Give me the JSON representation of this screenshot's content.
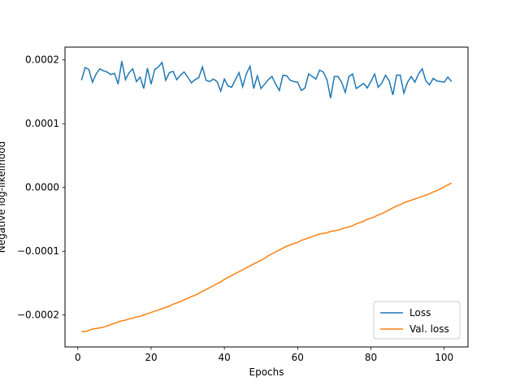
{
  "chart_data": {
    "type": "line",
    "title": "",
    "xlabel": "Epochs",
    "ylabel": "Negative log-likelihood",
    "xlim": [
      -3.5,
      106.5
    ],
    "ylim": [
      -0.00025,
      0.00022
    ],
    "xticks": [
      0,
      20,
      40,
      60,
      80,
      100
    ],
    "xtick_labels": [
      "0",
      "20",
      "40",
      "60",
      "80",
      "100"
    ],
    "yticks": [
      -0.0002,
      -0.0001,
      0.0,
      0.0001,
      0.0002
    ],
    "ytick_labels": [
      "−0.0002",
      "−0.0001",
      "0.0000",
      "0.0001",
      "0.0002"
    ],
    "grid": false,
    "legend_position": "lower-right",
    "x": [
      1,
      2,
      3,
      4,
      5,
      6,
      7,
      8,
      9,
      10,
      11,
      12,
      13,
      14,
      15,
      16,
      17,
      18,
      19,
      20,
      21,
      22,
      23,
      24,
      25,
      26,
      27,
      28,
      29,
      30,
      31,
      32,
      33,
      34,
      35,
      36,
      37,
      38,
      39,
      40,
      41,
      42,
      43,
      44,
      45,
      46,
      47,
      48,
      49,
      50,
      51,
      52,
      53,
      54,
      55,
      56,
      57,
      58,
      59,
      60,
      61,
      62,
      63,
      64,
      65,
      66,
      67,
      68,
      69,
      70,
      71,
      72,
      73,
      74,
      75,
      76,
      77,
      78,
      79,
      80,
      81,
      82,
      83,
      84,
      85,
      86,
      87,
      88,
      89,
      90,
      91,
      92,
      93,
      94,
      95,
      96,
      97,
      98,
      99,
      100,
      101,
      102
    ],
    "series": [
      {
        "name": "Loss",
        "color": "#1f77b4",
        "values": [
          0.000168,
          0.000188,
          0.000185,
          0.000165,
          0.000178,
          0.000186,
          0.000183,
          0.000181,
          0.000177,
          0.000179,
          0.000162,
          0.000198,
          0.000169,
          0.00018,
          0.000186,
          0.000166,
          0.000173,
          0.000155,
          0.000187,
          0.000162,
          0.000185,
          0.000189,
          0.000196,
          0.000168,
          0.00018,
          0.000182,
          0.000169,
          0.000176,
          0.000181,
          0.000173,
          0.000164,
          0.000169,
          0.000172,
          0.000189,
          0.000168,
          0.000166,
          0.00017,
          0.000166,
          0.000151,
          0.00017,
          0.000159,
          0.000157,
          0.000169,
          0.00018,
          0.000158,
          0.000178,
          0.00019,
          0.000155,
          0.000175,
          0.000155,
          0.000162,
          0.000169,
          0.000174,
          0.000162,
          0.000152,
          0.000176,
          0.000175,
          0.000168,
          0.000166,
          0.000165,
          0.000152,
          0.000156,
          0.000178,
          0.000174,
          0.00017,
          0.000184,
          0.000181,
          0.000169,
          0.00014,
          0.000174,
          0.000174,
          0.000165,
          0.000149,
          0.000174,
          0.000178,
          0.000155,
          0.000159,
          0.000163,
          0.000156,
          0.000166,
          0.000178,
          0.000157,
          0.000164,
          0.000176,
          0.000167,
          0.000145,
          0.000176,
          0.000176,
          0.000148,
          0.000165,
          0.000174,
          0.000165,
          0.000178,
          0.000186,
          0.000167,
          0.000161,
          0.000171,
          0.000167,
          0.000166,
          0.000165,
          0.000173,
          0.000166
        ]
      },
      {
        "name": "Val. loss",
        "color": "#ff7f0e",
        "values": [
          -0.000226,
          -0.000226,
          -0.000224,
          -0.000222,
          -0.000221,
          -0.00022,
          -0.000219,
          -0.000217,
          -0.000215,
          -0.000213,
          -0.000211,
          -0.000209,
          -0.000208,
          -0.000206,
          -0.000205,
          -0.000203,
          -0.000202,
          -0.0002,
          -0.000198,
          -0.000196,
          -0.000194,
          -0.000192,
          -0.00019,
          -0.000188,
          -0.000186,
          -0.000183,
          -0.000181,
          -0.000179,
          -0.000176,
          -0.000174,
          -0.000171,
          -0.000169,
          -0.000166,
          -0.000163,
          -0.00016,
          -0.000157,
          -0.000154,
          -0.000151,
          -0.000148,
          -0.000144,
          -0.000141,
          -0.000138,
          -0.000135,
          -0.000132,
          -0.000129,
          -0.000126,
          -0.000123,
          -0.00012,
          -0.000117,
          -0.000114,
          -0.000111,
          -0.000107,
          -0.000104,
          -0.000101,
          -9.8e-05,
          -9.5e-05,
          -9.2e-05,
          -9e-05,
          -8.8e-05,
          -8.6e-05,
          -8.3e-05,
          -8.1e-05,
          -7.9e-05,
          -7.7e-05,
          -7.5e-05,
          -7.3e-05,
          -7.2e-05,
          -7.1e-05,
          -6.9e-05,
          -6.8e-05,
          -6.7e-05,
          -6.5e-05,
          -6.3e-05,
          -6.2e-05,
          -6e-05,
          -5.7e-05,
          -5.5e-05,
          -5.3e-05,
          -5e-05,
          -4.8e-05,
          -4.6e-05,
          -4.3e-05,
          -4.1e-05,
          -3.8e-05,
          -3.5e-05,
          -3.2e-05,
          -2.9e-05,
          -2.7e-05,
          -2.4e-05,
          -2.2e-05,
          -2e-05,
          -1.8e-05,
          -1.6e-05,
          -1.4e-05,
          -1.2e-05,
          -1e-05,
          -7e-06,
          -5e-06,
          -2e-06,
          1e-06,
          4e-06,
          7e-06
        ]
      }
    ]
  }
}
